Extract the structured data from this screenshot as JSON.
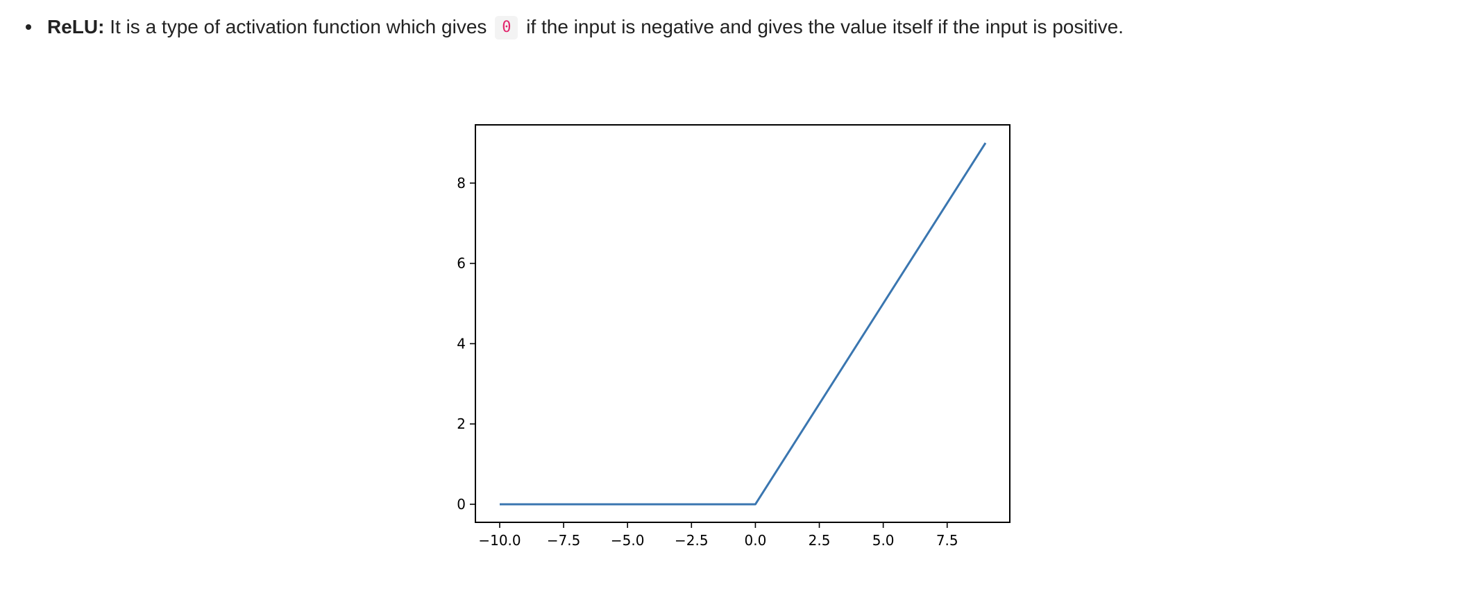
{
  "text": {
    "term": "ReLU:",
    "before_code": " It is a type of activation function which gives ",
    "code": "0",
    "after_code": " if the input is negative and gives the value itself if the input is positive."
  },
  "colors": {
    "line": "#3a76b0",
    "code_text": "#e2256c",
    "code_bg": "#f3f3f3"
  },
  "chart_data": {
    "type": "line",
    "title": "",
    "xlabel": "",
    "ylabel": "",
    "xlim": [
      -10.95,
      9.95
    ],
    "ylim": [
      -0.45,
      9.45
    ],
    "grid": false,
    "x_ticks": [
      -10.0,
      -7.5,
      -5.0,
      -2.5,
      0.0,
      2.5,
      5.0,
      7.5
    ],
    "x_tick_labels": [
      "−10.0",
      "−7.5",
      "−5.0",
      "−2.5",
      "0.0",
      "2.5",
      "5.0",
      "7.5"
    ],
    "y_ticks": [
      0,
      2,
      4,
      6,
      8
    ],
    "y_tick_labels": [
      "0",
      "2",
      "4",
      "6",
      "8"
    ],
    "series": [
      {
        "x": [
          -10,
          -9,
          -8,
          -7,
          -6,
          -5,
          -4,
          -3,
          -2,
          -1,
          0,
          1,
          2,
          3,
          4,
          5,
          6,
          7,
          8,
          9
        ],
        "y": [
          0,
          0,
          0,
          0,
          0,
          0,
          0,
          0,
          0,
          0,
          0,
          1,
          2,
          3,
          4,
          5,
          6,
          7,
          8,
          9
        ]
      }
    ]
  }
}
